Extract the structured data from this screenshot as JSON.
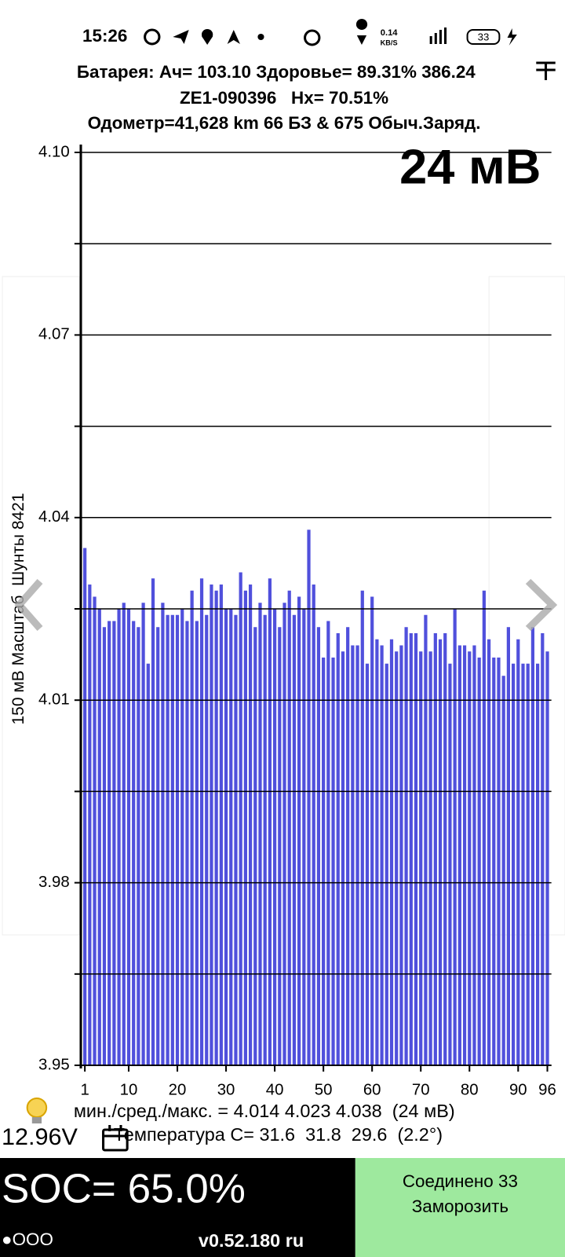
{
  "status_bar": {
    "time": "15:26",
    "speed": "0.14",
    "speed_unit": "KB/S",
    "battery": "33"
  },
  "header": {
    "line1": "Батарея: Ач= 103.10 Здоровье= 89.31% 386.24",
    "line2": "ZE1-090396   Hx= 70.51%",
    "line3": "Одометр=41,628 km 66 БЗ & 675 Обыч.Заряд."
  },
  "chart_data": {
    "type": "bar",
    "annotation": "24 мВ",
    "ylabel": "150 мВ Масштаб  Шунты 8421",
    "color": "#5050dc",
    "grid": true,
    "ylim": [
      3.95,
      4.1
    ],
    "yticks": [
      3.95,
      3.98,
      4.01,
      4.04,
      4.07,
      {
        "value": 4.1,
        "label": "4.10"
      }
    ],
    "minor_yticks": [
      3.965,
      3.995,
      4.025,
      4.055,
      4.085
    ],
    "categories": [
      1,
      null,
      null,
      null,
      null,
      null,
      null,
      null,
      null,
      10,
      null,
      null,
      null,
      null,
      null,
      null,
      null,
      null,
      null,
      20,
      null,
      null,
      null,
      null,
      null,
      null,
      null,
      null,
      null,
      30,
      null,
      null,
      null,
      null,
      null,
      null,
      null,
      null,
      null,
      40,
      null,
      null,
      null,
      null,
      null,
      null,
      null,
      null,
      null,
      50,
      null,
      null,
      null,
      null,
      null,
      null,
      null,
      null,
      null,
      60,
      null,
      null,
      null,
      null,
      null,
      null,
      null,
      null,
      null,
      70,
      null,
      null,
      null,
      null,
      null,
      null,
      null,
      null,
      null,
      80,
      null,
      null,
      null,
      null,
      null,
      null,
      null,
      null,
      null,
      90,
      null,
      null,
      null,
      null,
      null,
      96
    ],
    "values": [
      4.035,
      4.029,
      4.027,
      4.025,
      4.022,
      4.023,
      4.023,
      4.025,
      4.026,
      4.025,
      4.023,
      4.022,
      4.026,
      4.016,
      4.03,
      4.022,
      4.026,
      4.024,
      4.024,
      4.024,
      4.025,
      4.023,
      4.028,
      4.023,
      4.03,
      4.024,
      4.029,
      4.028,
      4.029,
      4.025,
      4.025,
      4.024,
      4.031,
      4.028,
      4.029,
      4.022,
      4.026,
      4.024,
      4.03,
      4.025,
      4.022,
      4.026,
      4.028,
      4.024,
      4.027,
      4.025,
      4.038,
      4.029,
      4.022,
      4.017,
      4.023,
      4.017,
      4.021,
      4.018,
      4.022,
      4.019,
      4.019,
      4.028,
      4.016,
      4.027,
      4.02,
      4.019,
      4.016,
      4.02,
      4.018,
      4.019,
      4.022,
      4.021,
      4.021,
      4.018,
      4.024,
      4.018,
      4.021,
      4.02,
      4.021,
      4.016,
      4.025,
      4.019,
      4.019,
      4.018,
      4.019,
      4.017,
      4.028,
      4.02,
      4.017,
      4.017,
      4.014,
      4.022,
      4.016,
      4.02,
      4.016,
      4.016,
      4.022,
      4.016,
      4.021,
      4.018
    ]
  },
  "stats": {
    "minmax": "мин./сред./макс. = 4.014 4.023 4.038  (24 мВ)",
    "pack_voltage": "12.96V",
    "temperature": "Температура C= 31.6  31.8  29.6  (2.2°)"
  },
  "footer": {
    "soc": "SOC= 65.0%",
    "dots": "●OOO",
    "version": "v0.52.180 ru",
    "connected": "Соединено 33",
    "freeze": "Заморозить"
  }
}
